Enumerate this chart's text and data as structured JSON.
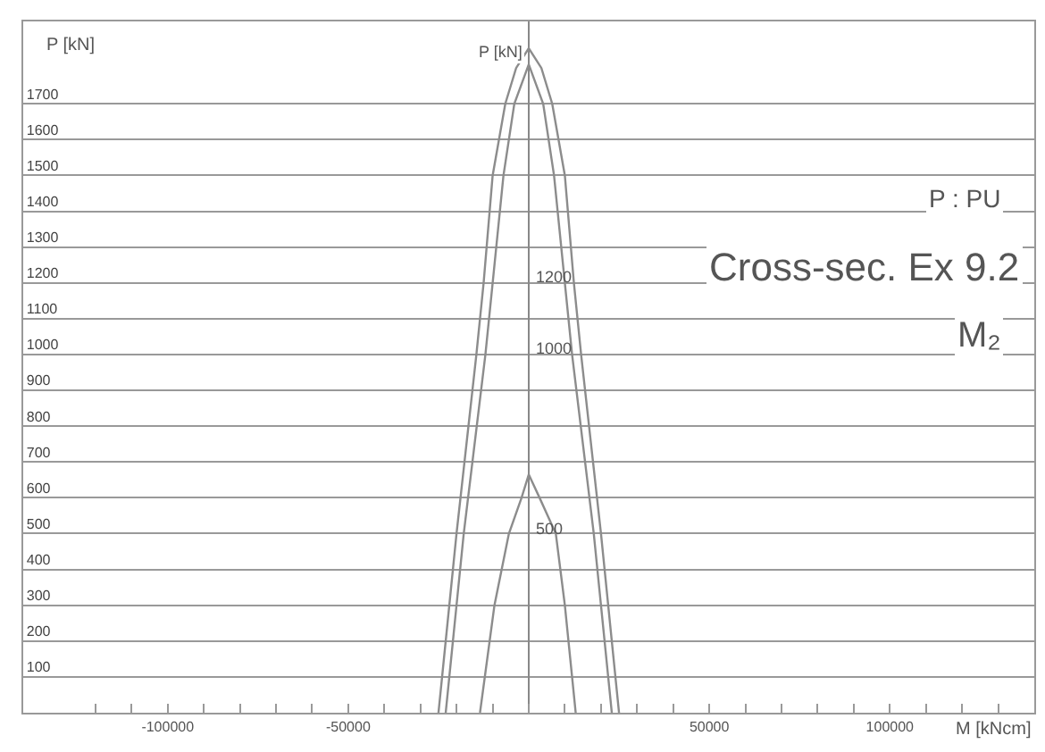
{
  "chart_data": {
    "type": "line",
    "xlabel": "M [kNcm]",
    "ylabel": "P [kN]",
    "series": [
      {
        "color": "#8c8c8c",
        "x": [
          -25000,
          -24000,
          -20000,
          -14500,
          -12500,
          -10000,
          -6500,
          -3500,
          0,
          3500,
          6500,
          10000,
          12500,
          14500,
          20000,
          24000,
          25000
        ],
        "values": [
          0,
          100,
          500,
          1000,
          1200,
          1500,
          1700,
          1800,
          1855,
          1800,
          1700,
          1500,
          1200,
          1000,
          500,
          100,
          0
        ]
      },
      {
        "color": "#8c8c8c",
        "x": [
          -23000,
          -22000,
          -18000,
          -12000,
          -10000,
          -7000,
          -4000,
          0,
          4000,
          7000,
          10000,
          12000,
          18000,
          22000,
          23000
        ],
        "values": [
          0,
          100,
          500,
          1000,
          1200,
          1500,
          1700,
          1810,
          1700,
          1500,
          1200,
          1000,
          500,
          100,
          0
        ]
      },
      {
        "color": "#8c8c8c",
        "x": [
          -13500,
          -9500,
          -5500,
          -2000,
          0,
          3000,
          7500,
          10000,
          13000
        ],
        "values": [
          0,
          300,
          500,
          600,
          665,
          600,
          500,
          300,
          0
        ]
      }
    ],
    "xlim": [
      -140000,
      140000
    ],
    "xticks": [
      {
        "value": -120000,
        "label": null
      },
      {
        "value": -110000,
        "label": null
      },
      -100000,
      {
        "value": -90000,
        "label": null
      },
      {
        "value": -80000,
        "label": null
      },
      {
        "value": -70000,
        "label": null
      },
      {
        "value": -60000,
        "label": null
      },
      -50000,
      {
        "value": -40000,
        "label": null
      },
      {
        "value": -30000,
        "label": null
      },
      {
        "value": -20000,
        "label": null
      },
      {
        "value": -10000,
        "label": null
      },
      {
        "value": 0,
        "label": null
      },
      {
        "value": 10000,
        "label": null
      },
      {
        "value": 20000,
        "label": null
      },
      {
        "value": 30000,
        "label": null
      },
      {
        "value": 40000,
        "label": null
      },
      50000,
      {
        "value": 60000,
        "label": null
      },
      {
        "value": 70000,
        "label": null
      },
      {
        "value": 80000,
        "label": null
      },
      {
        "value": 90000,
        "label": null
      },
      100000,
      {
        "value": 110000,
        "label": null
      },
      {
        "value": 120000,
        "label": null
      },
      {
        "value": 130000,
        "label": null
      }
    ],
    "ylim": [
      0,
      1930
    ],
    "yticks": [
      100,
      200,
      300,
      400,
      500,
      600,
      700,
      800,
      900,
      1000,
      1100,
      1200,
      1300,
      1400,
      1500,
      1600,
      1700
    ],
    "grid": "y",
    "marker": "none",
    "line_style": "solid",
    "annotations": [
      "P [kN]",
      "1200",
      "1000",
      "500",
      "P : PU",
      "Cross-sec. Ex 9.2",
      "M₂"
    ]
  }
}
